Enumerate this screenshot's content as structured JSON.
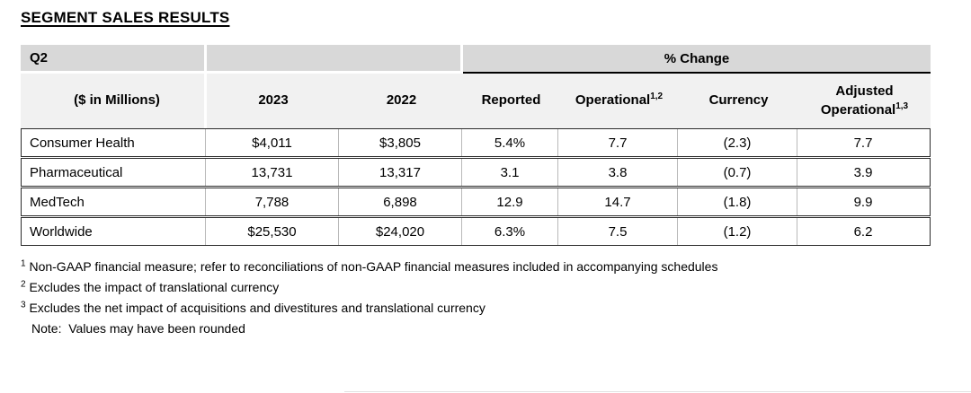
{
  "page": {
    "title": "SEGMENT SALES RESULTS"
  },
  "table": {
    "quarter_label": "Q2",
    "pct_change_label": "% Change",
    "col_headers": {
      "row_label": "($ in Millions)",
      "year1": "2023",
      "year2": "2022",
      "reported": "Reported",
      "operational": "Operational",
      "operational_sup": "1,2",
      "currency": "Currency",
      "adjusted_line1": "Adjusted",
      "adjusted_line2": "Operational",
      "adjusted_sup": "1,3"
    },
    "rows": [
      {
        "label": "Consumer Health",
        "y2023": "$4,011",
        "y2022": "$3,805",
        "reported": "5.4%",
        "operational": "7.7",
        "currency": "(2.3)",
        "adjusted": "7.7"
      },
      {
        "label": "Pharmaceutical",
        "y2023": "13,731",
        "y2022": "13,317",
        "reported": "3.1",
        "operational": "3.8",
        "currency": "(0.7)",
        "adjusted": "3.9"
      },
      {
        "label": "MedTech",
        "y2023": "7,788",
        "y2022": "6,898",
        "reported": "12.9",
        "operational": "14.7",
        "currency": "(1.8)",
        "adjusted": "9.9"
      },
      {
        "label": "Worldwide",
        "y2023": "$25,530",
        "y2022": "$24,020",
        "reported": "6.3%",
        "operational": "7.5",
        "currency": "(1.2)",
        "adjusted": "6.2"
      }
    ]
  },
  "footnotes": {
    "fn1_sup": "1",
    "fn1": "Non-GAAP financial measure; refer to reconciliations of non-GAAP financial measures included in accompanying schedules",
    "fn2_sup": "2",
    "fn2": "Excludes the impact of translational currency",
    "fn3_sup": "3",
    "fn3": "Excludes the net impact of acquisitions and divestitures and translational currency",
    "note": "Note:  Values may have been rounded"
  },
  "colors": {
    "band_gray": "#d8d8d8",
    "header_gray": "#f1f1f1",
    "row_border": "#2b2b2b",
    "divider_gray": "#b9b9b9"
  }
}
